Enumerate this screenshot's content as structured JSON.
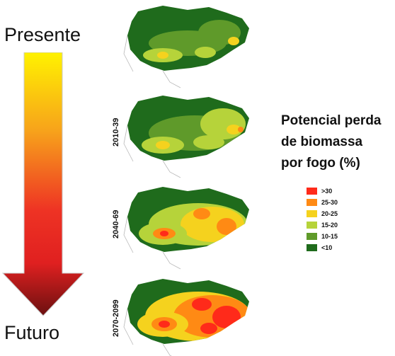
{
  "time_axis": {
    "start_label": "Presente",
    "end_label": "Futuro",
    "gradient_colors": [
      "#fff200",
      "#f7a21b",
      "#ee3324",
      "#e02020",
      "#6b1010"
    ]
  },
  "map_panels": [
    {
      "period": ""
    },
    {
      "period": "2010-39"
    },
    {
      "period": "2040-69"
    },
    {
      "period": "2070-2099"
    }
  ],
  "legend": {
    "title_lines": [
      "Potencial perda",
      "de biomassa",
      "por fogo (%)"
    ],
    "items": [
      {
        "label": ">30",
        "color": "#ff2a1a"
      },
      {
        "label": "25-30",
        "color": "#ff8a14"
      },
      {
        "label": "20-25",
        "color": "#f5d21e"
      },
      {
        "label": "15-20",
        "color": "#b6d33a"
      },
      {
        "label": "10-15",
        "color": "#5f9a2a"
      },
      {
        "label": "<10",
        "color": "#1f6b1c"
      }
    ]
  }
}
